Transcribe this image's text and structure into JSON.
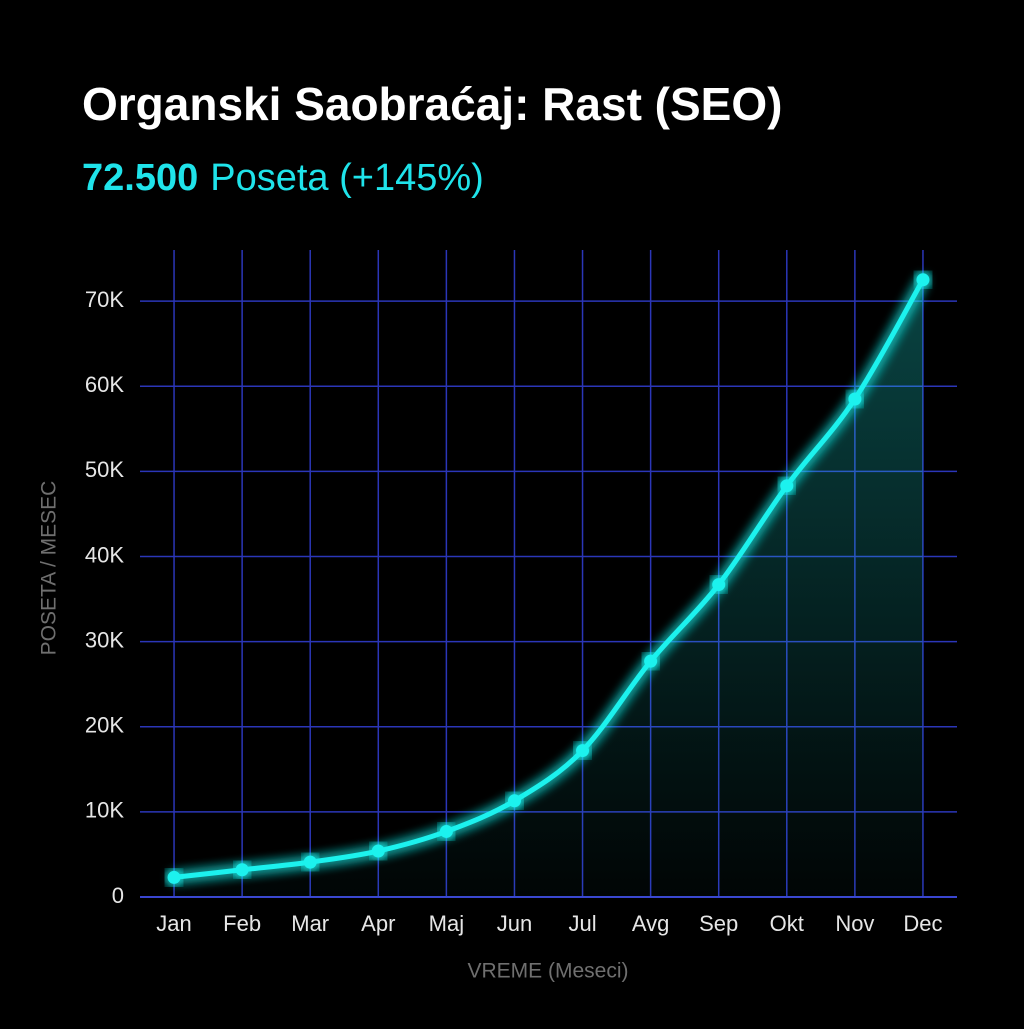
{
  "chart_data": {
    "type": "line",
    "title": "Organski Saobraćaj: Rast (SEO)",
    "subtitle_value": "72.500",
    "subtitle": "Poseta (+145%)",
    "x_label": "VREME (Meseci)",
    "y_label": "POSETA / MESEC",
    "categories": [
      "Jan",
      "Feb",
      "Mar",
      "Apr",
      "Maj",
      "Jun",
      "Jul",
      "Avg",
      "Sep",
      "Okt",
      "Nov",
      "Dec"
    ],
    "series": [
      {
        "name": "Poseta",
        "color": "#1ff2ee",
        "values": [
          2300,
          3200,
          4100,
          5400,
          7700,
          11300,
          17200,
          27700,
          36700,
          48300,
          58500,
          72500
        ]
      }
    ],
    "ylim": [
      0,
      76000
    ],
    "yticks": [
      0,
      {
        "value": 10000,
        "label": "10K"
      },
      {
        "value": 20000,
        "label": "20K"
      },
      {
        "value": 30000,
        "label": "30K"
      },
      {
        "value": 40000,
        "label": "40K"
      },
      {
        "value": 50000,
        "label": "50K"
      },
      {
        "value": 60000,
        "label": "60K"
      },
      {
        "value": 70000,
        "label": "70K"
      }
    ],
    "grid": true
  }
}
